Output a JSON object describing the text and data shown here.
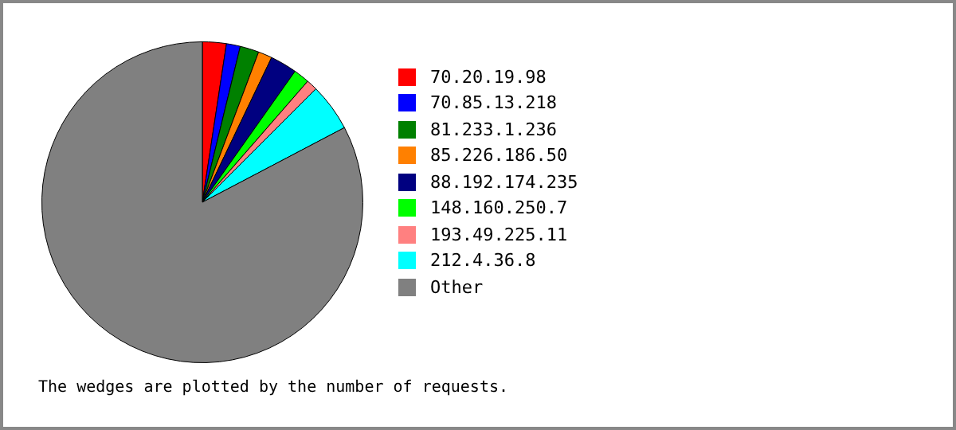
{
  "chart_data": {
    "type": "pie",
    "categories": [
      "70.20.19.98",
      "70.85.13.218",
      "81.233.1.236",
      "85.226.186.50",
      "88.192.174.235",
      "148.160.250.7",
      "193.49.225.11",
      "212.4.36.8",
      "Other"
    ],
    "values": [
      2.4,
      1.4,
      1.9,
      1.4,
      2.7,
      1.6,
      1.1,
      4.8,
      82.7
    ],
    "colors": [
      "#ff0000",
      "#0000ff",
      "#008000",
      "#ff8000",
      "#000080",
      "#00ff00",
      "#ff8080",
      "#00ffff",
      "#808080"
    ],
    "legend": "right",
    "annotations": [
      "The wedges are plotted by the number of requests."
    ]
  }
}
